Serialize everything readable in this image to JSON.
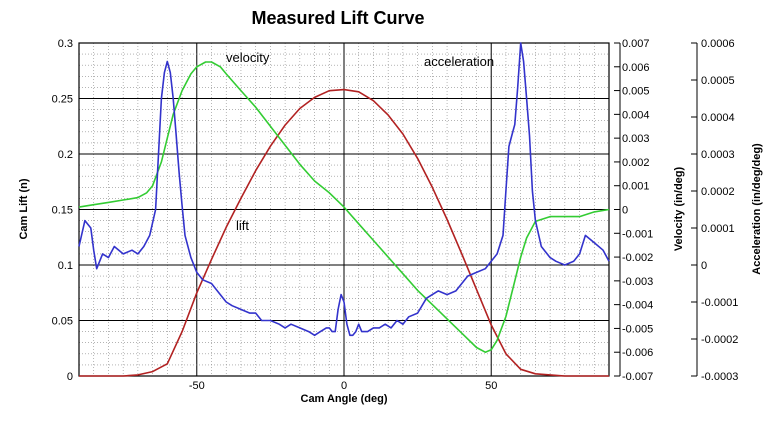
{
  "chart_data": {
    "type": "line",
    "title": "Measured Lift Curve",
    "xlabel": "Cam Angle (deg)",
    "ylabel": "Cam Lift (n)",
    "y2label": "Velocity (in/deg)",
    "y3label": "Acceleration (in/deg/deg)",
    "xlim": [
      -90,
      90
    ],
    "ylim": [
      0,
      0.3
    ],
    "y2lim": [
      -0.007,
      0.007
    ],
    "y3lim": [
      -0.0003,
      0.0006
    ],
    "grid": true,
    "x_ticks": [
      -50,
      0,
      50
    ],
    "x_tick_labels": [
      "-50",
      "0",
      "50"
    ],
    "y_ticks": [
      0,
      0.05,
      0.1,
      0.15,
      0.2,
      0.25,
      0.3
    ],
    "y_tick_labels": [
      "0",
      "0.05",
      "0.1",
      "0.15",
      "0.2",
      "0.25",
      "0.3"
    ],
    "y2_ticks": [
      -0.007,
      -0.006,
      -0.005,
      -0.004,
      -0.003,
      -0.002,
      -0.001,
      0,
      0.001,
      0.002,
      0.003,
      0.004,
      0.005,
      0.006,
      0.007
    ],
    "y2_tick_labels": [
      "-0.007",
      "-0.006",
      "-0.005",
      "-0.004",
      "-0.003",
      "-0.002",
      "-0.001",
      "0",
      "0.001",
      "0.002",
      "0.003",
      "0.004",
      "0.005",
      "0.006",
      "0.007"
    ],
    "y3_ticks": [
      -0.0003,
      -0.0002,
      -0.0001,
      0,
      0.0001,
      0.0002,
      0.0003,
      0.0004,
      0.0005,
      0.0006
    ],
    "y3_tick_labels": [
      "-0.0003",
      "-0.0002",
      "-0.0001",
      "0",
      "0.0001",
      "0.0002",
      "0.0003",
      "0.0004",
      "0.0005",
      "0.0006"
    ],
    "annotations": {
      "velocity": "velocity",
      "acceleration": "acceleration",
      "lift": "lift"
    },
    "series": [
      {
        "name": "lift",
        "axis": "y",
        "color": "#b22222",
        "x": [
          -90,
          -75,
          -70,
          -65,
          -60,
          -55,
          -50,
          -45,
          -40,
          -35,
          -30,
          -25,
          -20,
          -15,
          -10,
          -5,
          0,
          5,
          10,
          15,
          20,
          25,
          30,
          35,
          40,
          45,
          50,
          55,
          60,
          65,
          70,
          75,
          90
        ],
        "values": [
          0,
          0,
          0.001,
          0.004,
          0.011,
          0.04,
          0.075,
          0.105,
          0.134,
          0.16,
          0.185,
          0.207,
          0.226,
          0.241,
          0.251,
          0.257,
          0.258,
          0.256,
          0.248,
          0.235,
          0.218,
          0.196,
          0.17,
          0.141,
          0.11,
          0.078,
          0.046,
          0.02,
          0.006,
          0.002,
          0.001,
          0,
          0
        ]
      },
      {
        "name": "velocity",
        "axis": "y2",
        "color": "#33cc33",
        "x": [
          -90,
          -85,
          -80,
          -75,
          -70,
          -67,
          -65,
          -62,
          -60,
          -58,
          -55,
          -52,
          -50,
          -47,
          -45,
          -42,
          -40,
          -35,
          -30,
          -25,
          -20,
          -15,
          -10,
          -5,
          0,
          5,
          10,
          15,
          20,
          25,
          30,
          35,
          40,
          45,
          48,
          50,
          52,
          55,
          58,
          60,
          62,
          65,
          70,
          75,
          80,
          85,
          90
        ],
        "values": [
          0.0001,
          0.0002,
          0.0003,
          0.0004,
          0.0005,
          0.0007,
          0.001,
          0.002,
          0.003,
          0.004,
          0.005,
          0.0057,
          0.006,
          0.0062,
          0.0062,
          0.006,
          0.0057,
          0.005,
          0.0043,
          0.0035,
          0.0027,
          0.0019,
          0.0012,
          0.0007,
          0.0001,
          -0.0006,
          -0.0013,
          -0.002,
          -0.0027,
          -0.0034,
          -0.004,
          -0.0046,
          -0.0052,
          -0.0058,
          -0.006,
          -0.0059,
          -0.0055,
          -0.0045,
          -0.003,
          -0.002,
          -0.0012,
          -0.0005,
          -0.0003,
          -0.0003,
          -0.0003,
          -0.0001,
          0
        ]
      },
      {
        "name": "acceleration",
        "axis": "y3",
        "color": "#3333cc",
        "x": [
          -90,
          -88,
          -86,
          -85,
          -84,
          -82,
          -80,
          -78,
          -75,
          -72,
          -70,
          -68,
          -66,
          -64,
          -63,
          -62,
          -61,
          -60,
          -59,
          -58,
          -57,
          -56,
          -55,
          -54,
          -52,
          -50,
          -48,
          -45,
          -42,
          -40,
          -38,
          -35,
          -32,
          -30,
          -28,
          -25,
          -22,
          -20,
          -18,
          -15,
          -12,
          -10,
          -8,
          -6,
          -5,
          -4,
          -3,
          -2,
          -1,
          0,
          1,
          2,
          3,
          4,
          5,
          6,
          8,
          10,
          12,
          14,
          16,
          18,
          20,
          22,
          25,
          28,
          30,
          32,
          35,
          38,
          40,
          42,
          45,
          48,
          50,
          52,
          54,
          55,
          56,
          57,
          58,
          59,
          60,
          61,
          62,
          63,
          64,
          65,
          67,
          70,
          72,
          75,
          78,
          80,
          82,
          85,
          88,
          90
        ],
        "values": [
          5e-05,
          0.00012,
          0.0001,
          4e-05,
          -1e-05,
          3e-05,
          2e-05,
          5e-05,
          3e-05,
          4e-05,
          3e-05,
          5e-05,
          8e-05,
          0.00015,
          0.0003,
          0.00045,
          0.00052,
          0.00055,
          0.00052,
          0.00045,
          0.00035,
          0.00025,
          0.00016,
          8e-05,
          2e-05,
          -2e-05,
          -4e-05,
          -5e-05,
          -8e-05,
          -0.0001,
          -0.00011,
          -0.00012,
          -0.00013,
          -0.00013,
          -0.00015,
          -0.00015,
          -0.00016,
          -0.00017,
          -0.00016,
          -0.00017,
          -0.00018,
          -0.00019,
          -0.00018,
          -0.00017,
          -0.00017,
          -0.00018,
          -0.00018,
          -0.00012,
          -8e-05,
          -0.0001,
          -0.00016,
          -0.00019,
          -0.00019,
          -0.00018,
          -0.00016,
          -0.00018,
          -0.00018,
          -0.00017,
          -0.00017,
          -0.00016,
          -0.00017,
          -0.00015,
          -0.00016,
          -0.00014,
          -0.00013,
          -9e-05,
          -8e-05,
          -7e-05,
          -8e-05,
          -7e-05,
          -5e-05,
          -3e-05,
          -2e-05,
          -1e-05,
          1e-05,
          3e-05,
          8e-05,
          0.0002,
          0.00032,
          0.00035,
          0.00038,
          0.00048,
          0.0006,
          0.00055,
          0.00045,
          0.00035,
          0.0002,
          0.00012,
          5e-05,
          2e-05,
          1e-05,
          0,
          1e-05,
          3e-05,
          8e-05,
          6e-05,
          4e-05,
          1e-05
        ]
      }
    ]
  }
}
